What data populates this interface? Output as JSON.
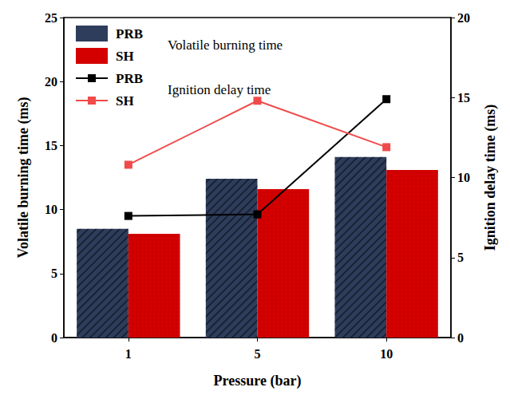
{
  "chart_data": {
    "type": "bar",
    "x_label": "Pressure (bar)",
    "y_label": "Volatile burning time (ms)",
    "y2_label": "Ignition delay time (ms)",
    "categories": [
      "1",
      "5",
      "10"
    ],
    "series": [
      {
        "name": "PRB",
        "type": "bar",
        "color": "#2e3d5c",
        "values": [
          8.5,
          12.4,
          14.1
        ]
      },
      {
        "name": "SH",
        "type": "bar",
        "color": "#d40000",
        "values": [
          8.1,
          11.6,
          13.1
        ]
      },
      {
        "name": "PRB",
        "type": "line",
        "axis": "y2",
        "color": "#000000",
        "marker": "square",
        "line_style": "solid",
        "values": [
          7.6,
          7.7,
          14.9
        ]
      },
      {
        "name": "SH",
        "type": "line",
        "axis": "y2",
        "color": "#f04b4b",
        "marker": "square",
        "line_style": "solid",
        "values": [
          10.8,
          14.8,
          11.9
        ]
      }
    ],
    "ylim": [
      0,
      25
    ],
    "yticks": [
      0,
      5,
      10,
      15,
      20,
      25
    ],
    "y2lim": [
      0,
      20
    ],
    "y2ticks": [
      0,
      5,
      10,
      15,
      20
    ],
    "grid": false,
    "annotations": [
      {
        "text": "Volatile burning time",
        "type": "bar"
      },
      {
        "text": "Ignition delay time",
        "type": "line"
      }
    ]
  }
}
